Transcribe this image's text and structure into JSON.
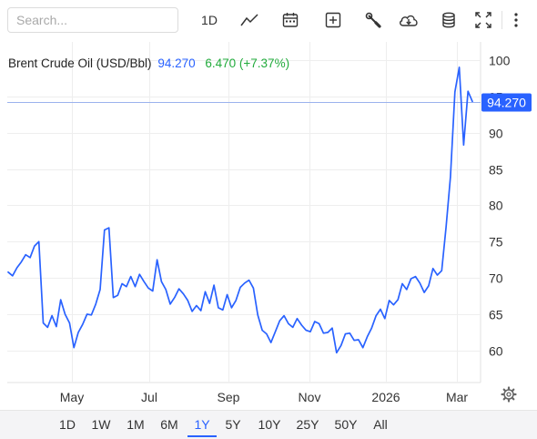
{
  "toolbar": {
    "search_placeholder": "Search...",
    "interval_label": "1D"
  },
  "legend": {
    "name": "Brent Crude Oil (USD/Bbl)",
    "price": "94.270",
    "change": "6.470 (+7.37%)"
  },
  "price_tag": "94.270",
  "ranges": [
    "1D",
    "1W",
    "1M",
    "6M",
    "1Y",
    "5Y",
    "10Y",
    "25Y",
    "50Y",
    "All"
  ],
  "active_range": "1Y",
  "colors": {
    "line": "#2962ff",
    "change": "#22ab3c",
    "grid": "#eeeeee"
  },
  "icons": [
    "line-chart-icon",
    "calendar-icon",
    "add-indicator-icon",
    "wrench-icon",
    "cloud-download-icon",
    "database-icon",
    "fullscreen-icon",
    "more-icon",
    "gear-icon"
  ],
  "chart_data": {
    "type": "line",
    "title": "Brent Crude Oil (USD/Bbl)",
    "x_axis_ticks": [
      "May",
      "Jul",
      "Sep",
      "Nov",
      "2026",
      "Mar"
    ],
    "y_axis_ticks": [
      60,
      65,
      70,
      75,
      80,
      85,
      90,
      95,
      100
    ],
    "ylim": [
      55.6,
      102.5
    ],
    "last_value": 94.27,
    "grid": true,
    "series": [
      {
        "values": [
          70.8,
          70.3,
          71.4,
          72.2,
          73.2,
          72.8,
          74.4,
          75.0,
          63.8,
          63.2,
          64.8,
          63.3,
          67.0,
          65.0,
          63.8,
          60.4,
          62.5,
          63.6,
          65.0,
          64.9,
          66.4,
          68.4,
          76.6,
          76.9,
          67.3,
          67.6,
          69.2,
          68.8,
          70.2,
          68.8,
          70.5,
          69.5,
          68.6,
          68.2,
          72.5,
          69.5,
          68.4,
          66.4,
          67.3,
          68.5,
          67.8,
          66.9,
          65.4,
          66.2,
          65.5,
          68.1,
          66.5,
          69.0,
          65.9,
          65.6,
          67.7,
          65.9,
          66.9,
          68.7,
          69.3,
          69.7,
          68.6,
          64.9,
          62.8,
          62.3,
          61.1,
          62.6,
          64.1,
          64.8,
          63.7,
          63.2,
          64.4,
          63.5,
          62.8,
          62.6,
          64.0,
          63.7,
          62.4,
          62.5,
          63.1,
          59.7,
          60.7,
          62.3,
          62.4,
          61.4,
          61.5,
          60.4,
          61.9,
          63.1,
          64.8,
          65.7,
          64.4,
          66.9,
          66.3,
          67.0,
          69.2,
          68.4,
          69.9,
          70.2,
          69.3,
          68.0,
          68.9,
          71.3,
          70.4,
          71.0,
          77.0,
          83.9,
          95.6,
          99.0,
          88.3,
          95.7,
          94.3
        ]
      }
    ]
  }
}
